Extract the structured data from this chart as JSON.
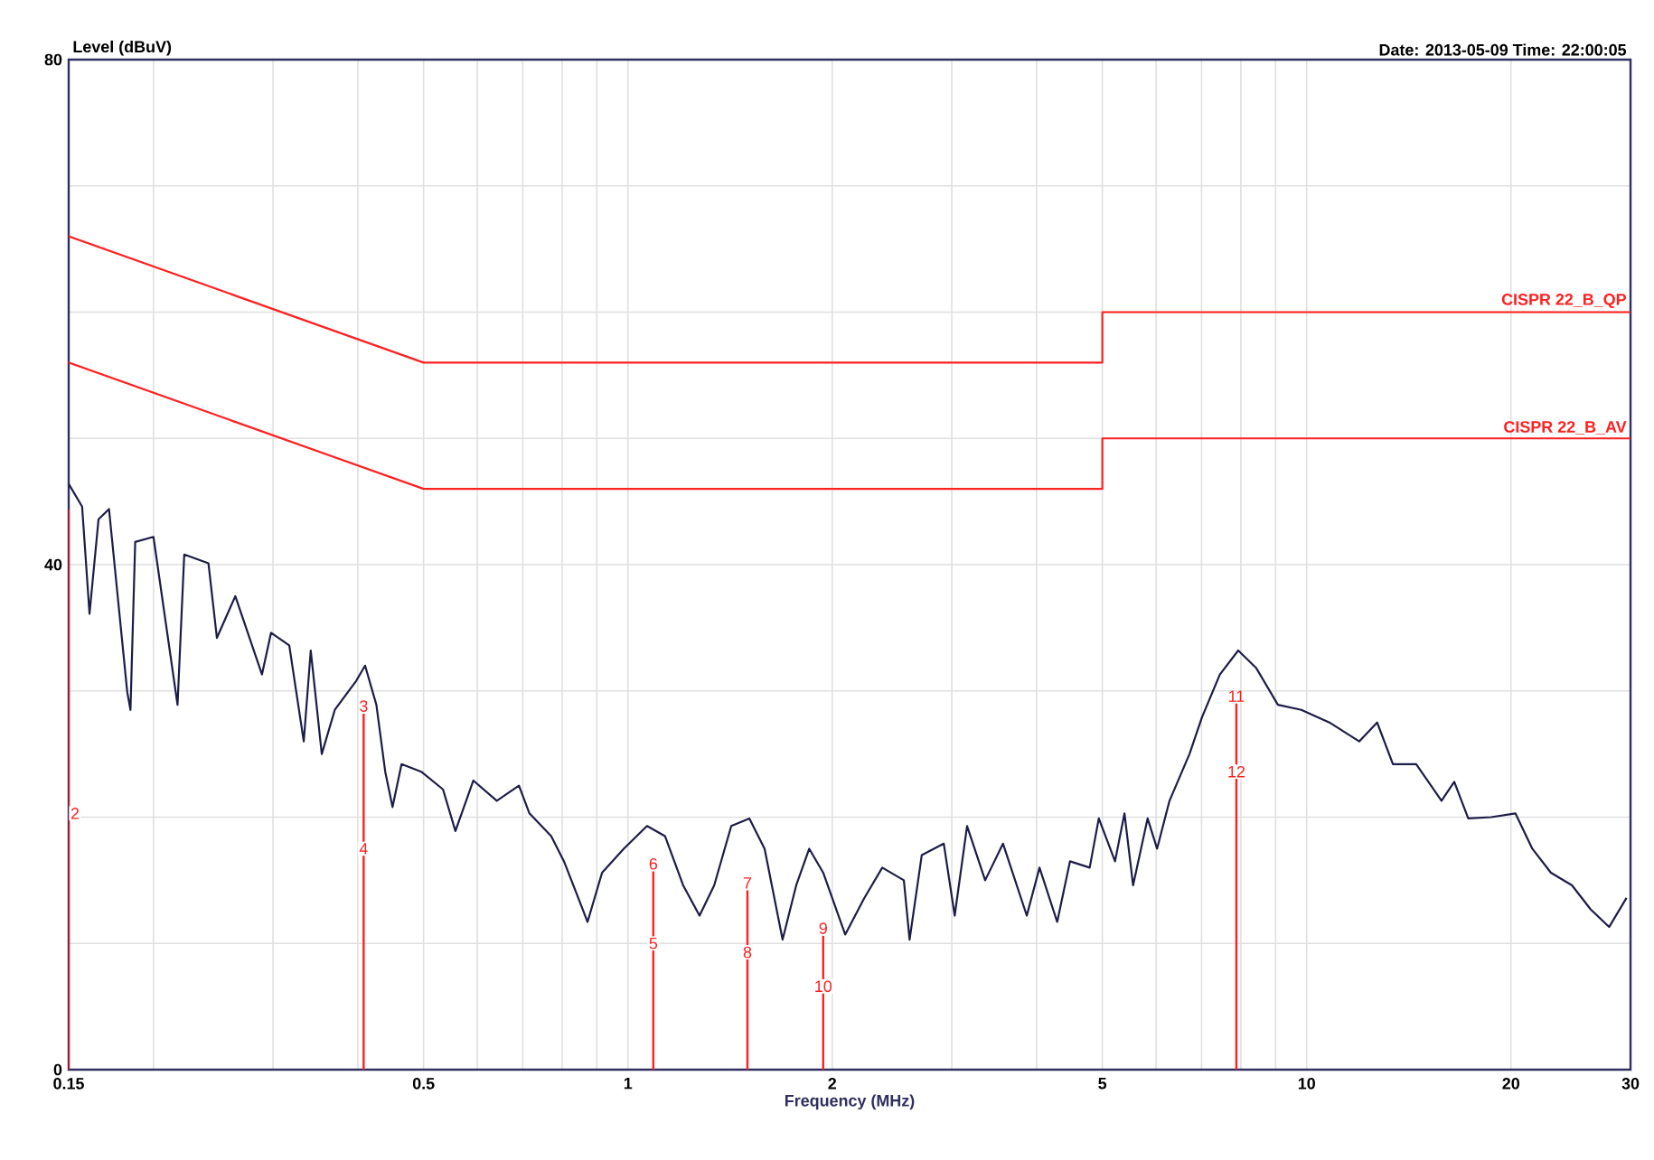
{
  "chart_data": {
    "type": "line",
    "title": "Date: 2013-05-09  Time: 22:00:05",
    "xlabel": "Frequency (MHz)",
    "ylabel": "Level (dBuV)",
    "log": "x",
    "grid": true,
    "xlim": [
      0.15,
      30
    ],
    "ylim": [
      0,
      80
    ],
    "xticks": [
      0.15,
      0.5,
      1,
      2,
      5,
      10,
      20,
      30
    ],
    "yticks": [
      0,
      {
        "value": 10,
        "label": null
      },
      {
        "value": 20,
        "label": null
      },
      {
        "value": 30,
        "label": null
      },
      40,
      {
        "value": 50,
        "label": null
      },
      {
        "value": 60,
        "label": null
      },
      {
        "value": 70,
        "label": null
      },
      80
    ],
    "series": [
      {
        "color": "#1c1c48",
        "x": [
          0.15,
          0.157,
          0.161,
          0.166,
          0.172,
          0.183,
          0.185,
          0.188,
          0.2,
          0.217,
          0.222,
          0.241,
          0.248,
          0.264,
          0.289,
          0.298,
          0.317,
          0.333,
          0.341,
          0.354,
          0.37,
          0.398,
          0.41,
          0.426,
          0.439,
          0.45,
          0.464,
          0.496,
          0.534,
          0.557,
          0.592,
          0.641,
          0.691,
          0.716,
          0.771,
          0.805,
          0.845,
          0.872,
          0.916,
          0.986,
          1.067,
          1.134,
          1.206,
          1.275,
          1.34,
          1.42,
          1.51,
          1.59,
          1.69,
          1.77,
          1.85,
          1.94,
          2.09,
          2.23,
          2.37,
          2.55,
          2.6,
          2.71,
          2.92,
          3.03,
          3.16,
          3.36,
          3.57,
          3.87,
          4.04,
          4.29,
          4.48,
          4.79,
          4.94,
          5.22,
          5.39,
          5.55,
          5.83,
          6.02,
          6.28,
          6.72,
          7.01,
          7.45,
          7.93,
          8.43,
          9.07,
          9.82,
          10.8,
          11.95,
          12.7,
          13.4,
          14.5,
          15.8,
          16.5,
          17.3,
          18.7,
          20.3,
          21.5,
          22.9,
          24.6,
          26.2,
          27.9,
          29.6
        ],
        "values": [
          46.4,
          44.6,
          36.1,
          43.6,
          44.4,
          29.9,
          28.5,
          41.8,
          42.2,
          28.9,
          40.8,
          40.1,
          34.2,
          37.5,
          31.3,
          34.6,
          33.6,
          26.0,
          33.2,
          25.0,
          28.5,
          30.8,
          32.0,
          28.9,
          23.6,
          20.8,
          24.2,
          23.6,
          22.2,
          18.9,
          22.9,
          21.3,
          22.5,
          20.3,
          18.5,
          16.5,
          13.6,
          11.7,
          15.6,
          17.5,
          19.3,
          18.5,
          14.6,
          12.2,
          14.6,
          19.3,
          19.9,
          17.5,
          10.3,
          14.6,
          17.5,
          15.6,
          10.7,
          13.6,
          16.0,
          15.0,
          10.3,
          17.0,
          17.9,
          12.2,
          19.3,
          15.0,
          17.9,
          12.2,
          16.0,
          11.7,
          16.5,
          16.0,
          19.9,
          16.5,
          20.3,
          14.6,
          19.9,
          17.5,
          21.3,
          25.0,
          27.9,
          31.3,
          33.2,
          31.8,
          28.9,
          28.5,
          27.5,
          26.0,
          27.5,
          24.2,
          24.2,
          21.3,
          22.8,
          19.9,
          20.0,
          20.3,
          17.5,
          15.6,
          14.6,
          12.7,
          11.3,
          13.6
        ]
      },
      {
        "type": "line",
        "name": "CISPR 22_B_QP",
        "color": "#ff2020",
        "x": [
          0.15,
          0.5,
          5,
          5,
          30
        ],
        "values": [
          66,
          56,
          56,
          60,
          60
        ]
      },
      {
        "type": "line",
        "name": "CISPR 22_B_AV",
        "color": "#ff2020",
        "x": [
          0.15,
          0.5,
          5,
          5,
          30
        ],
        "values": [
          56,
          46,
          46,
          50,
          50
        ]
      },
      {
        "type": "bar",
        "color": "#ff2020",
        "x": [
          0.15,
          0.408,
          1.09,
          1.5,
          1.94,
          7.88
        ],
        "values": [
          44.4,
          28.2,
          15.7,
          14.2,
          10.6,
          29.0
        ]
      }
    ],
    "annotations": [
      {
        "text": "2",
        "x": 0.15,
        "y": 20.3
      },
      {
        "text": "3",
        "x": 0.408,
        "y": 28.2
      },
      {
        "text": "4",
        "x": 0.408,
        "y": 17.5
      },
      {
        "text": "5",
        "x": 1.09,
        "y": 10.0
      },
      {
        "text": "6",
        "x": 1.09,
        "y": 15.7
      },
      {
        "text": "7",
        "x": 1.5,
        "y": 14.2
      },
      {
        "text": "8",
        "x": 1.5,
        "y": 9.3
      },
      {
        "text": "9",
        "x": 1.94,
        "y": 10.6
      },
      {
        "text": "10",
        "x": 1.94,
        "y": 6.6
      },
      {
        "text": "11",
        "x": 7.88,
        "y": 29.0
      },
      {
        "text": "12",
        "x": 7.88,
        "y": 23.6
      }
    ]
  }
}
